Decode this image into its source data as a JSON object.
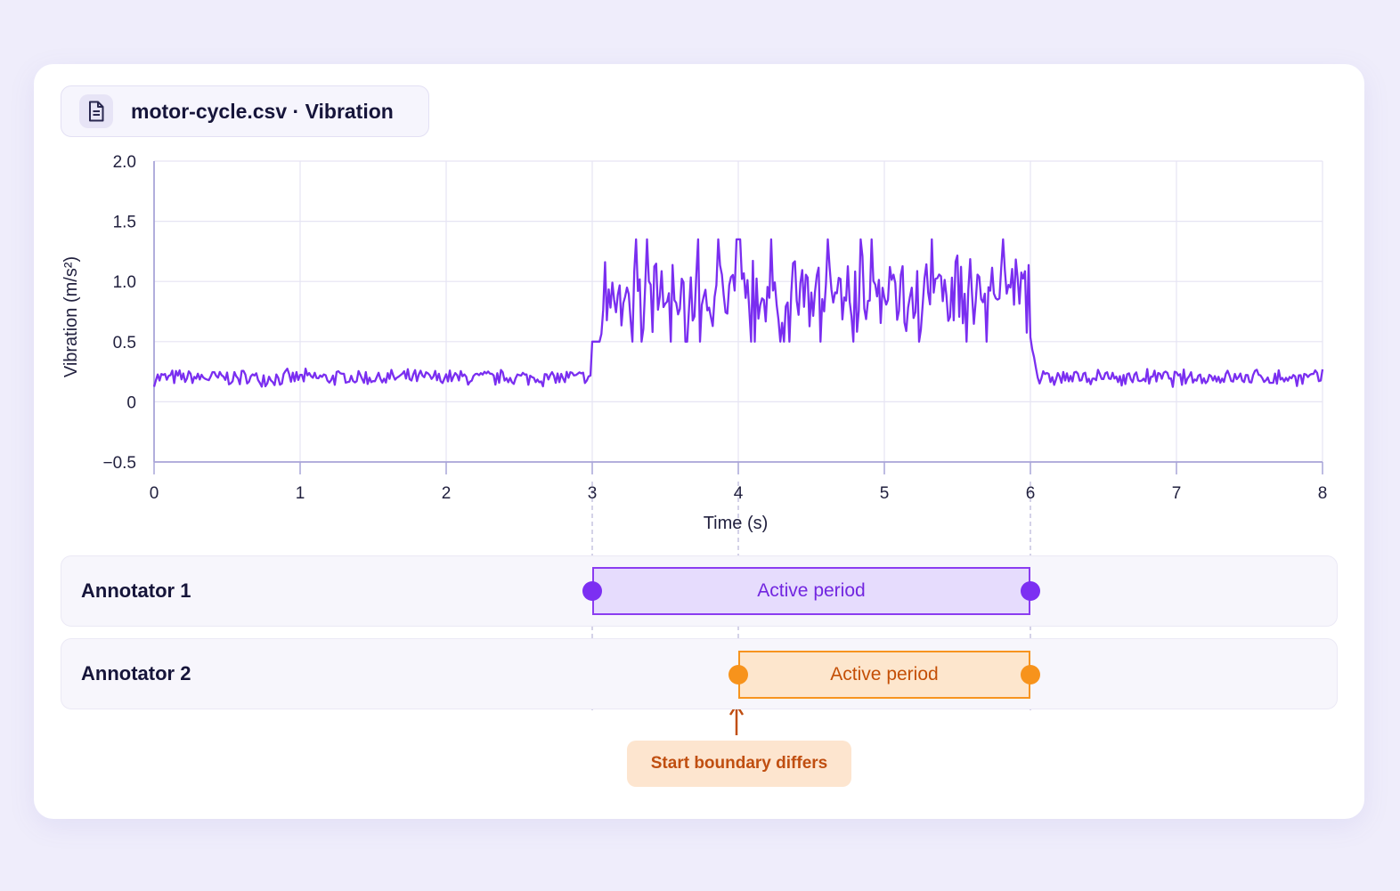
{
  "file_title": "motor-cycle.csv · Vibration",
  "colors": {
    "signal": "#7a2ef0",
    "annotator1": "#8b3cf1",
    "annotator2": "#f7941f",
    "callout_text": "#c04e10"
  },
  "icons": {
    "file": "document-icon"
  },
  "chart_data": {
    "type": "line",
    "title": "",
    "xlabel": "Time (s)",
    "ylabel": "Vibration (m/s²)",
    "xlim": [
      0,
      8
    ],
    "ylim": [
      -0.5,
      2.0
    ],
    "x_ticks": [
      "0",
      "1",
      "2",
      "3",
      "4",
      "5",
      "6",
      "7",
      "8"
    ],
    "y_ticks": [
      "2.0",
      "1.5",
      "1.0",
      "0.5",
      "0",
      "−0.5"
    ],
    "grid": true,
    "series": [
      {
        "description": "noisy vibration signal",
        "segments": [
          {
            "x_start": 0,
            "x_end": 3,
            "baseline": 0.2,
            "noise_amplitude": 0.08
          },
          {
            "x_start": 3,
            "x_end": 6,
            "baseline": 0.9,
            "noise_amplitude": 0.3,
            "peak_max": 1.43,
            "trough_min": 0.5
          },
          {
            "x_start": 6,
            "x_end": 8,
            "baseline": 0.2,
            "noise_amplitude": 0.08
          }
        ]
      }
    ]
  },
  "annotators": [
    {
      "label": "Annotator 1",
      "period_label": "Active period",
      "start": 3,
      "end": 6
    },
    {
      "label": "Annotator 2",
      "period_label": "Active period",
      "start": 4,
      "end": 6
    }
  ],
  "callout": {
    "text": "Start boundary differs"
  }
}
